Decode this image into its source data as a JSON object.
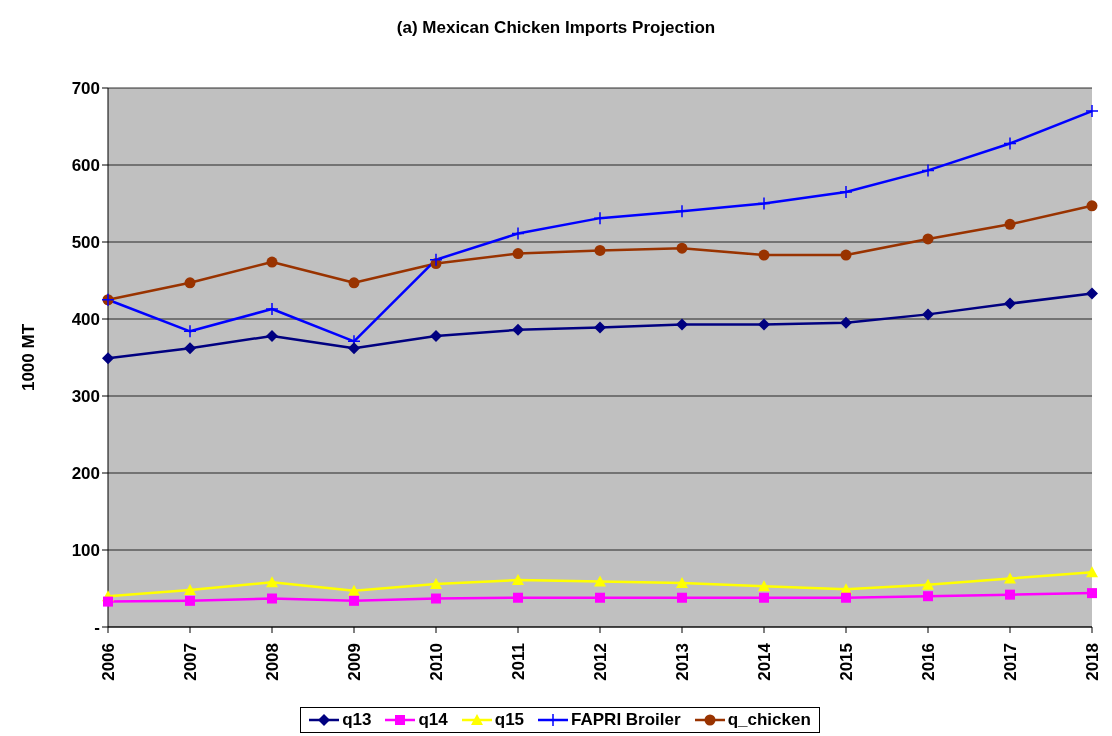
{
  "chart_data": {
    "type": "line",
    "title": "(a) Mexican Chicken Imports Projection",
    "ylabel": "1000 MT",
    "categories": [
      "2006",
      "2007",
      "2008",
      "2009",
      "2010",
      "2011",
      "2012",
      "2013",
      "2014",
      "2015",
      "2016",
      "2017",
      "2018"
    ],
    "series": [
      {
        "name": "q13",
        "color": "#000080",
        "marker": "diamond",
        "values": [
          349,
          362,
          378,
          362,
          378,
          386,
          389,
          393,
          393,
          395,
          406,
          420,
          433
        ]
      },
      {
        "name": "q14",
        "color": "#ff00ff",
        "marker": "square",
        "values": [
          33,
          34,
          37,
          34,
          37,
          38,
          38,
          38,
          38,
          38,
          40,
          42,
          44
        ]
      },
      {
        "name": "q15",
        "color": "#ffff00",
        "marker": "triangle",
        "values": [
          40,
          48,
          58,
          47,
          56,
          61,
          59,
          57,
          53,
          49,
          55,
          63,
          71
        ]
      },
      {
        "name": "FAPRI Broiler",
        "color": "#0000ff",
        "marker": "cross",
        "values": [
          425,
          384,
          413,
          371,
          477,
          511,
          531,
          540,
          550,
          565,
          593,
          628,
          670
        ]
      },
      {
        "name": "q_chicken",
        "color": "#993300",
        "marker": "circle",
        "values": [
          425,
          447,
          474,
          447,
          472,
          485,
          489,
          492,
          483,
          483,
          504,
          523,
          547
        ]
      }
    ],
    "ylim": [
      0,
      700
    ],
    "yticks": [
      {
        "value": 0,
        "label": "-"
      },
      100,
      200,
      300,
      400,
      500,
      600,
      700
    ],
    "grid": "y",
    "legend": "bottom"
  }
}
